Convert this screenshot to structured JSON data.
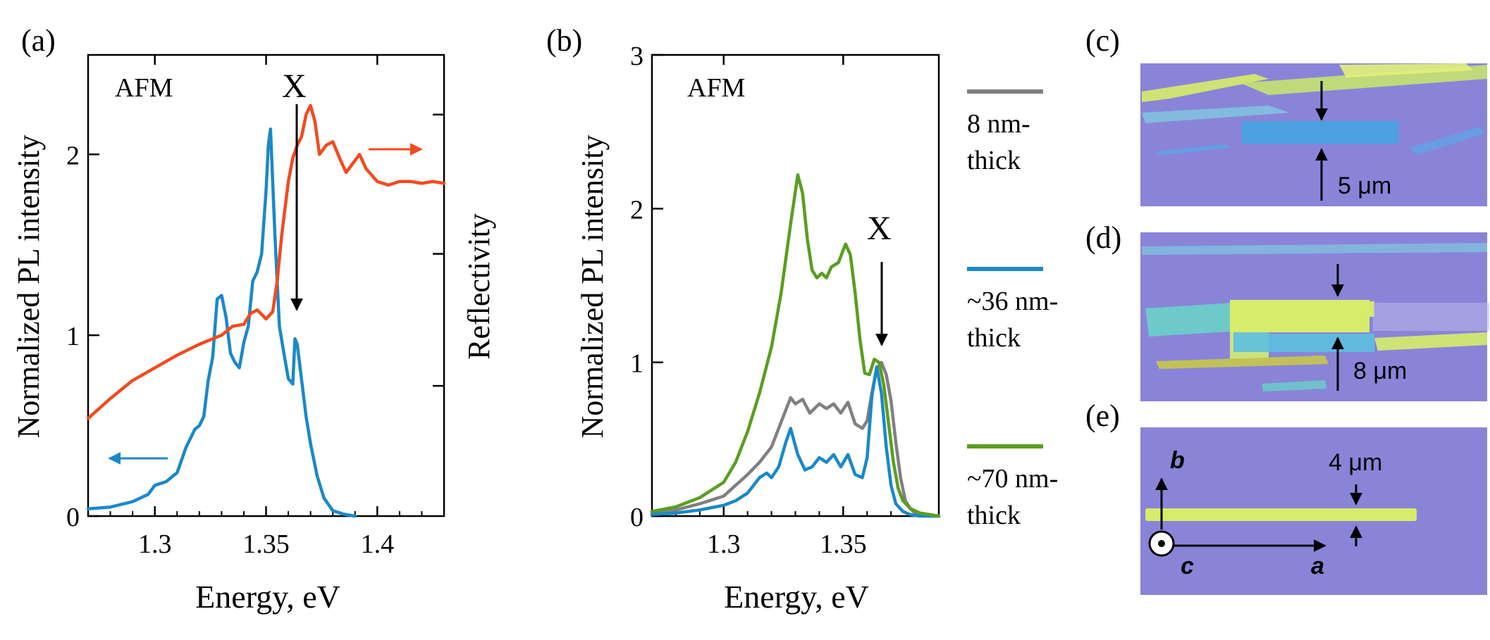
{
  "colors": {
    "blue": "#1a88c9",
    "orange": "#f24a1e",
    "gray": "#808080",
    "green": "#5a9e1f",
    "axis": "#000000",
    "substrate": "#8a84d9",
    "flake_yellow": "#d6ec6a",
    "flake_cyan": "#7fd3df",
    "flake_blue": "#4aa0e0"
  },
  "chart_data": [
    {
      "id": "a",
      "type": "line",
      "panel_label": "(a)",
      "annotation": "AFM",
      "exciton_label": "X",
      "ylabel_left": "Normalized PL intensity",
      "ylabel_right": "Reflectivity",
      "xlabel": "Energy, eV",
      "xlim": [
        1.27,
        1.43
      ],
      "ylim": [
        0,
        2.55
      ],
      "xticks": [
        1.3,
        1.35,
        1.4
      ],
      "xtick_labels": [
        "1.3",
        "1.35",
        "1.4"
      ],
      "yticks": [
        0,
        1,
        2
      ],
      "ytick_labels": [
        "0",
        "1",
        "2"
      ],
      "series": [
        {
          "name": "PL",
          "axis": "left",
          "color": "blue",
          "x": [
            1.27,
            1.28,
            1.29,
            1.297,
            1.3,
            1.305,
            1.31,
            1.314,
            1.318,
            1.32,
            1.322,
            1.324,
            1.326,
            1.328,
            1.33,
            1.332,
            1.334,
            1.336,
            1.338,
            1.34,
            1.342,
            1.344,
            1.346,
            1.348,
            1.35,
            1.351,
            1.352,
            1.354,
            1.356,
            1.358,
            1.36,
            1.362,
            1.363,
            1.364,
            1.366,
            1.368,
            1.37,
            1.373,
            1.376,
            1.38,
            1.385,
            1.39
          ],
          "y": [
            0.04,
            0.05,
            0.08,
            0.12,
            0.17,
            0.19,
            0.24,
            0.38,
            0.48,
            0.5,
            0.55,
            0.75,
            0.88,
            1.2,
            1.22,
            1.1,
            0.9,
            0.85,
            0.82,
            0.96,
            1.05,
            1.3,
            1.35,
            1.45,
            1.8,
            2.05,
            2.14,
            1.55,
            1.05,
            0.9,
            0.76,
            0.73,
            0.98,
            0.95,
            0.75,
            0.55,
            0.4,
            0.22,
            0.1,
            0.03,
            0.01,
            0.0
          ]
        },
        {
          "name": "Reflectivity",
          "axis": "right",
          "color": "orange",
          "x": [
            1.27,
            1.28,
            1.29,
            1.3,
            1.31,
            1.32,
            1.33,
            1.335,
            1.34,
            1.343,
            1.346,
            1.35,
            1.353,
            1.355,
            1.357,
            1.36,
            1.362,
            1.364,
            1.366,
            1.368,
            1.37,
            1.372,
            1.374,
            1.377,
            1.38,
            1.383,
            1.386,
            1.389,
            1.392,
            1.395,
            1.4,
            1.405,
            1.41,
            1.415,
            1.42,
            1.425,
            1.43
          ],
          "y": [
            0.54,
            0.65,
            0.75,
            0.82,
            0.89,
            0.95,
            1.0,
            1.05,
            1.06,
            1.12,
            1.14,
            1.09,
            1.13,
            1.3,
            1.55,
            1.85,
            1.98,
            2.05,
            2.1,
            2.22,
            2.27,
            2.18,
            2.0,
            2.05,
            2.07,
            1.98,
            1.9,
            1.95,
            2.0,
            1.92,
            1.85,
            1.83,
            1.85,
            1.85,
            1.84,
            1.85,
            1.84
          ]
        }
      ]
    },
    {
      "id": "b",
      "type": "line",
      "panel_label": "(b)",
      "annotation": "AFM",
      "exciton_label": "X",
      "ylabel": "Normalized PL intensity",
      "xlabel": "Energy, eV",
      "xlim": [
        1.27,
        1.39
      ],
      "ylim": [
        0,
        3
      ],
      "xticks": [
        1.3,
        1.35
      ],
      "xtick_labels": [
        "1.3",
        "1.35"
      ],
      "yticks": [
        0,
        1,
        2,
        3
      ],
      "ytick_labels": [
        "0",
        "1",
        "2",
        "3"
      ],
      "series": [
        {
          "name": "8 nm-thick",
          "legend": [
            "8 nm-",
            "thick"
          ],
          "color": "gray",
          "x": [
            1.27,
            1.28,
            1.29,
            1.3,
            1.305,
            1.31,
            1.315,
            1.32,
            1.325,
            1.328,
            1.33,
            1.333,
            1.336,
            1.34,
            1.343,
            1.346,
            1.349,
            1.352,
            1.355,
            1.358,
            1.36,
            1.362,
            1.364,
            1.366,
            1.368,
            1.37,
            1.372,
            1.374,
            1.376,
            1.378,
            1.38,
            1.385,
            1.39
          ],
          "y": [
            0.02,
            0.04,
            0.08,
            0.13,
            0.2,
            0.27,
            0.35,
            0.45,
            0.65,
            0.77,
            0.73,
            0.76,
            0.67,
            0.73,
            0.7,
            0.73,
            0.67,
            0.74,
            0.6,
            0.57,
            0.62,
            0.8,
            0.96,
            1.0,
            0.92,
            0.75,
            0.48,
            0.25,
            0.1,
            0.05,
            0.02,
            0.01,
            0.0
          ]
        },
        {
          "name": "~36 nm-thick",
          "legend": [
            "~36 nm-",
            "thick"
          ],
          "color": "blue",
          "x": [
            1.27,
            1.28,
            1.29,
            1.3,
            1.305,
            1.31,
            1.315,
            1.318,
            1.32,
            1.323,
            1.326,
            1.328,
            1.331,
            1.334,
            1.337,
            1.34,
            1.343,
            1.346,
            1.349,
            1.352,
            1.355,
            1.358,
            1.36,
            1.362,
            1.364,
            1.366,
            1.368,
            1.37,
            1.372,
            1.375,
            1.378,
            1.382,
            1.39
          ],
          "y": [
            0.01,
            0.02,
            0.04,
            0.07,
            0.1,
            0.15,
            0.25,
            0.28,
            0.25,
            0.32,
            0.48,
            0.57,
            0.4,
            0.3,
            0.32,
            0.38,
            0.35,
            0.4,
            0.32,
            0.4,
            0.27,
            0.25,
            0.38,
            0.78,
            0.97,
            0.8,
            0.45,
            0.2,
            0.08,
            0.03,
            0.01,
            0.0,
            0.0
          ]
        },
        {
          "name": "~70 nm-thick",
          "legend": [
            "~70 nm-",
            "thick"
          ],
          "color": "green",
          "x": [
            1.27,
            1.28,
            1.29,
            1.3,
            1.305,
            1.31,
            1.315,
            1.32,
            1.324,
            1.328,
            1.331,
            1.333,
            1.335,
            1.337,
            1.339,
            1.341,
            1.343,
            1.345,
            1.348,
            1.351,
            1.353,
            1.355,
            1.357,
            1.359,
            1.361,
            1.363,
            1.365,
            1.367,
            1.369,
            1.371,
            1.373,
            1.375,
            1.378,
            1.382,
            1.39
          ],
          "y": [
            0.03,
            0.06,
            0.12,
            0.22,
            0.35,
            0.55,
            0.8,
            1.1,
            1.45,
            1.9,
            2.22,
            2.1,
            1.8,
            1.6,
            1.55,
            1.58,
            1.55,
            1.62,
            1.65,
            1.77,
            1.7,
            1.45,
            1.15,
            0.93,
            0.92,
            1.02,
            1.0,
            0.85,
            0.6,
            0.35,
            0.18,
            0.1,
            0.05,
            0.02,
            0.0
          ]
        }
      ]
    }
  ],
  "images": [
    {
      "id": "c",
      "panel_label": "(c)",
      "scale_label": "5 μm"
    },
    {
      "id": "d",
      "panel_label": "(d)",
      "scale_label": "8 μm"
    },
    {
      "id": "e",
      "panel_label": "(e)",
      "scale_label": "4 μm",
      "axis_b": "b",
      "axis_c": "c",
      "axis_a": "a"
    }
  ]
}
